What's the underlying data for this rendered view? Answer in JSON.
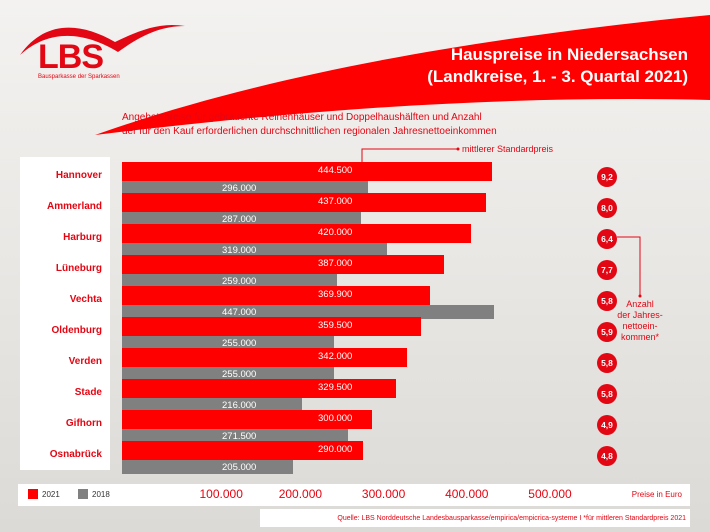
{
  "header": {
    "logo": "LBS",
    "logo_sub": "Bausparkasse der Sparkassen",
    "title_line1": "Hauspreise in Niedersachsen",
    "title_line2": "(Landkreise, 1. - 3. Quartal 2021)"
  },
  "subtitle_line1": "Angebotspreise für gebrauchte Reihenhäuser und Doppelhaushälften und Anzahl",
  "subtitle_line2": "der für den Kauf erforderlichen durchschnittlichen regionalen Jahresnettoeinkommen",
  "annotation_price": "mittlerer Standardpreis",
  "annotation_income": [
    "Anzahl",
    "der Jahres-",
    "nettoein-",
    "kommen*"
  ],
  "colors": {
    "2021": "#ff0000",
    "2018": "#808080",
    "accent": "#e30613"
  },
  "chart_data": {
    "type": "bar",
    "orientation": "horizontal",
    "categories": [
      "Hannover",
      "Ammerland",
      "Harburg",
      "Lüneburg",
      "Vechta",
      "Oldenburg",
      "Verden",
      "Stade",
      "Gifhorn",
      "Osnabrück"
    ],
    "series": [
      {
        "name": "2021",
        "values": [
          444500,
          437000,
          420000,
          387000,
          369900,
          359500,
          342000,
          329500,
          300000,
          290000
        ],
        "labels": [
          "444.500",
          "437.000",
          "420.000",
          "387.000",
          "369.900",
          "359.500",
          "342.000",
          "329.500",
          "300.000",
          "290.000"
        ]
      },
      {
        "name": "2018",
        "values": [
          296000,
          287000,
          319000,
          259000,
          447000,
          255000,
          255000,
          216000,
          271500,
          205000
        ],
        "labels": [
          "296.000",
          "287.000",
          "319.000",
          "259.000",
          "447.000",
          "255.000",
          "255.000",
          "216.000",
          "271.500",
          "205.000"
        ]
      }
    ],
    "income_multiples": [
      "9,2",
      "8,0",
      "6,4",
      "7,7",
      "5,8",
      "5,9",
      "5,8",
      "5,8",
      "4,9",
      "4,8"
    ],
    "xticks": [
      "100.000",
      "200.000",
      "300.000",
      "400.000",
      "500.000"
    ],
    "xtick_values": [
      100000,
      200000,
      300000,
      400000,
      500000
    ],
    "xlabel": "Preise in Euro",
    "xlim": [
      0,
      500000
    ],
    "legend": "bottom-left"
  },
  "source": "Quelle: LBS Norddeutsche Landesbausparkasse/empirica/empicrica-systeme   I   *für mittleren Standardpreis 2021"
}
